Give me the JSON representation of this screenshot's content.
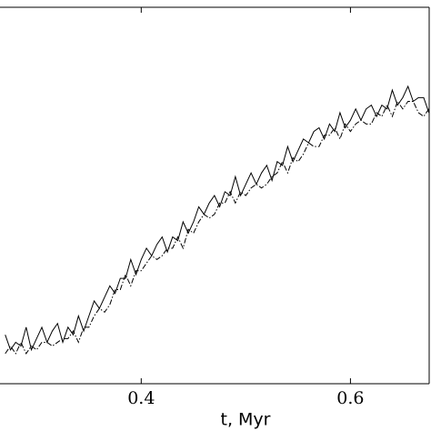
{
  "chart_data": {
    "type": "line",
    "xlabel": "t, Myr",
    "x": [
      0.27,
      0.275,
      0.28,
      0.285,
      0.29,
      0.295,
      0.3,
      0.305,
      0.31,
      0.315,
      0.32,
      0.325,
      0.33,
      0.335,
      0.34,
      0.345,
      0.35,
      0.355,
      0.36,
      0.365,
      0.37,
      0.375,
      0.38,
      0.385,
      0.39,
      0.395,
      0.4,
      0.405,
      0.41,
      0.415,
      0.42,
      0.425,
      0.43,
      0.435,
      0.44,
      0.445,
      0.45,
      0.455,
      0.46,
      0.465,
      0.47,
      0.475,
      0.48,
      0.485,
      0.49,
      0.495,
      0.5,
      0.505,
      0.51,
      0.515,
      0.52,
      0.525,
      0.53,
      0.535,
      0.54,
      0.545,
      0.55,
      0.555,
      0.56,
      0.565,
      0.57,
      0.575,
      0.58,
      0.585,
      0.59,
      0.595,
      0.6,
      0.605,
      0.61,
      0.615,
      0.62,
      0.625,
      0.63,
      0.635,
      0.64,
      0.645,
      0.65,
      0.655,
      0.66,
      0.665,
      0.67,
      0.675
    ],
    "series": [
      {
        "color": "#000000",
        "style": "solid",
        "values": [
          0.13,
          0.09,
          0.11,
          0.1,
          0.15,
          0.09,
          0.12,
          0.15,
          0.11,
          0.14,
          0.16,
          0.11,
          0.15,
          0.13,
          0.18,
          0.14,
          0.18,
          0.22,
          0.2,
          0.23,
          0.26,
          0.24,
          0.28,
          0.28,
          0.33,
          0.29,
          0.33,
          0.36,
          0.34,
          0.37,
          0.39,
          0.35,
          0.39,
          0.38,
          0.43,
          0.4,
          0.43,
          0.47,
          0.45,
          0.48,
          0.5,
          0.47,
          0.51,
          0.5,
          0.55,
          0.5,
          0.53,
          0.56,
          0.53,
          0.56,
          0.58,
          0.54,
          0.59,
          0.58,
          0.63,
          0.59,
          0.62,
          0.65,
          0.64,
          0.67,
          0.68,
          0.65,
          0.69,
          0.67,
          0.72,
          0.68,
          0.7,
          0.73,
          0.7,
          0.73,
          0.74,
          0.71,
          0.74,
          0.73,
          0.78,
          0.74,
          0.76,
          0.79,
          0.75,
          0.76,
          0.76,
          0.72
        ]
      },
      {
        "color": "#000000",
        "style": "dashdot",
        "values": [
          0.08,
          0.1,
          0.08,
          0.11,
          0.08,
          0.1,
          0.09,
          0.11,
          0.11,
          0.1,
          0.11,
          0.12,
          0.12,
          0.14,
          0.11,
          0.15,
          0.15,
          0.18,
          0.2,
          0.19,
          0.21,
          0.25,
          0.25,
          0.29,
          0.26,
          0.3,
          0.3,
          0.32,
          0.34,
          0.33,
          0.34,
          0.36,
          0.36,
          0.39,
          0.36,
          0.41,
          0.4,
          0.43,
          0.45,
          0.44,
          0.45,
          0.48,
          0.48,
          0.51,
          0.48,
          0.51,
          0.5,
          0.52,
          0.53,
          0.52,
          0.53,
          0.55,
          0.56,
          0.59,
          0.56,
          0.6,
          0.59,
          0.61,
          0.64,
          0.63,
          0.63,
          0.66,
          0.66,
          0.68,
          0.65,
          0.69,
          0.67,
          0.69,
          0.7,
          0.69,
          0.69,
          0.72,
          0.71,
          0.74,
          0.71,
          0.75,
          0.73,
          0.75,
          0.75,
          0.72,
          0.71,
          0.73
        ]
      }
    ],
    "xlim": [
      0.265,
      0.677
    ],
    "xticks": [
      0.4,
      0.6
    ],
    "ylim": [
      0,
      1
    ]
  }
}
